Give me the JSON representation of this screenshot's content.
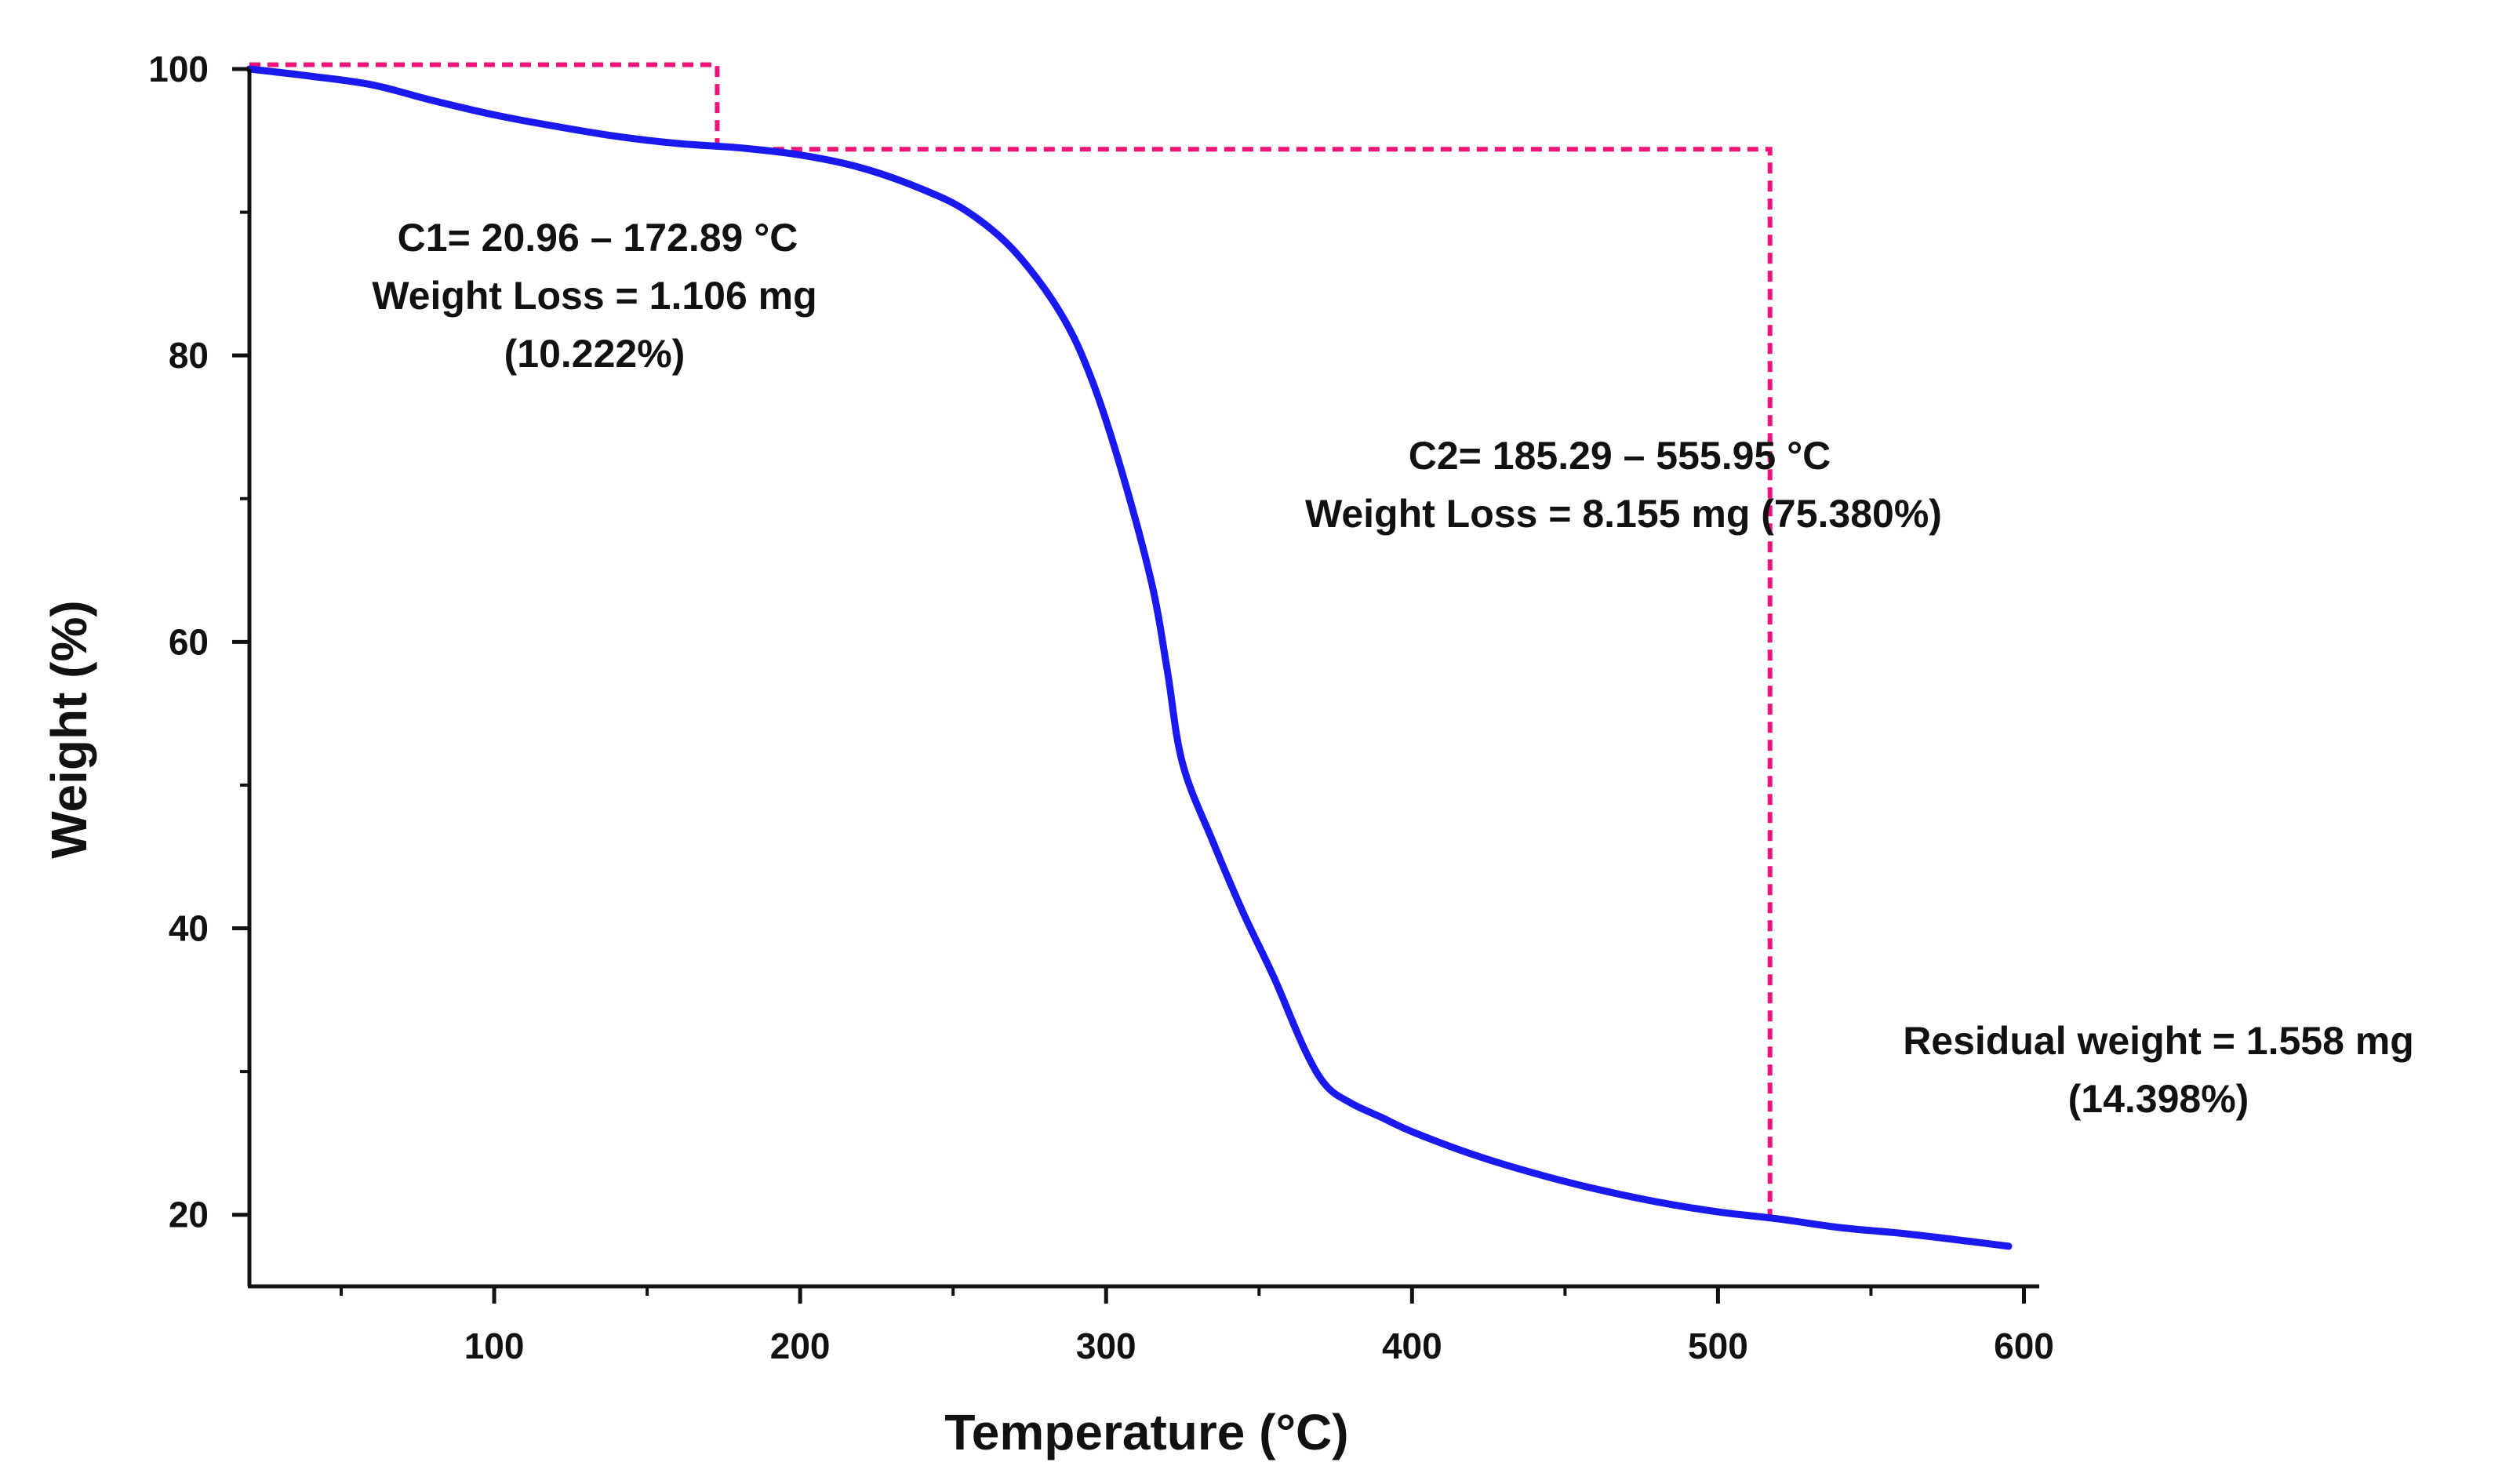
{
  "colors": {
    "curve": "#1a1af0",
    "guide": "#f0147a",
    "axis": "#111111"
  },
  "chart_data": {
    "type": "line",
    "title": "",
    "xlabel": "Temperature (°C)",
    "ylabel": "Weight (%)",
    "xlim": [
      20,
      605
    ],
    "ylim": [
      15,
      100
    ],
    "x_ticks": [
      100,
      200,
      300,
      400,
      500,
      600
    ],
    "x_tick_labels": [
      "100",
      "200",
      "300",
      "400",
      "500",
      "600"
    ],
    "x_minor_ticks": [
      50,
      150,
      250,
      350,
      450,
      550
    ],
    "y_ticks": [
      20,
      40,
      60,
      80,
      100
    ],
    "y_tick_labels": [
      "20",
      "40",
      "60",
      "80",
      "100"
    ],
    "y_minor_ticks": [
      30,
      50,
      70,
      90
    ],
    "grid": false,
    "series": [
      {
        "name": "Weight",
        "x": [
          20,
          40,
          60,
          80,
          100,
          120,
          140,
          160,
          180,
          200,
          220,
          240,
          255,
          270,
          285,
          295,
          305,
          315,
          320,
          325,
          335,
          345,
          355,
          365,
          372,
          380,
          390,
          400,
          420,
          440,
          460,
          480,
          500,
          520,
          540,
          560,
          580,
          595
        ],
        "y": [
          100,
          99.5,
          98.9,
          97.8,
          96.8,
          96.0,
          95.3,
          94.8,
          94.5,
          94.0,
          93.1,
          91.6,
          90.0,
          87.3,
          83.0,
          78.5,
          72.0,
          64.0,
          58.0,
          51.5,
          46.0,
          41.0,
          36.5,
          31.5,
          29.0,
          27.8,
          26.8,
          25.8,
          24.2,
          22.9,
          21.8,
          20.9,
          20.2,
          19.7,
          19.1,
          18.7,
          18.2,
          17.8
        ]
      }
    ],
    "guides": [
      {
        "name": "c1-guide",
        "points": [
          [
            20,
            100.3
          ],
          [
            172.89,
            100.3
          ],
          [
            172.89,
            94.6
          ]
        ]
      },
      {
        "name": "c2-guide",
        "points": [
          [
            185.29,
            94.4
          ],
          [
            517,
            94.4
          ],
          [
            517,
            19.8
          ]
        ]
      }
    ],
    "annotations": [
      {
        "name": "c1-range",
        "text": "C1= 20.96 – 172.89 °C"
      },
      {
        "name": "c1-weight-loss",
        "text": "Weight Loss  = 1.106 mg"
      },
      {
        "name": "c1-percent",
        "text": "(10.222%)"
      },
      {
        "name": "c2-range",
        "text": "C2= 185.29 – 555.95 °C"
      },
      {
        "name": "c2-weight-loss",
        "text": "Weight Loss  = 8.155 mg (75.380%)"
      },
      {
        "name": "residual-weight",
        "text": "Residual weight = 1.558 mg"
      },
      {
        "name": "residual-percent",
        "text": "(14.398%)"
      }
    ]
  }
}
